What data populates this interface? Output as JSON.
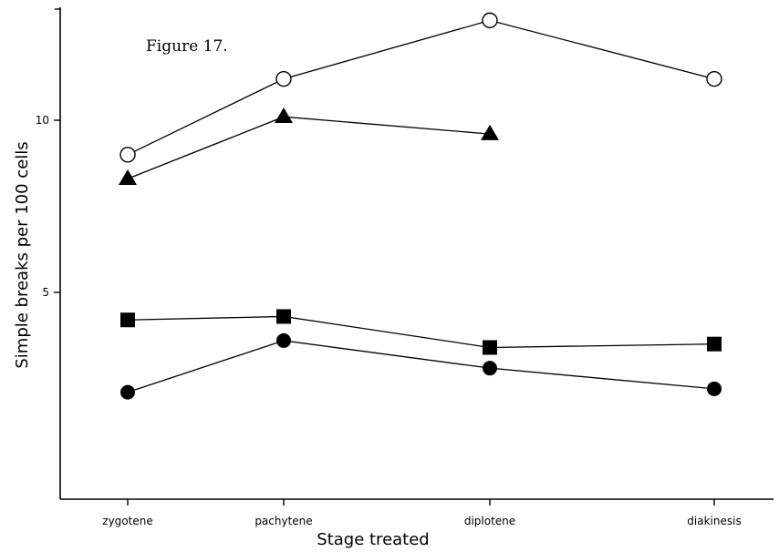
{
  "figure_label": "Figure 17.",
  "chart_data": {
    "type": "line",
    "title": "",
    "xlabel": "Stage treated",
    "ylabel": "Simple breaks per 100 cells",
    "categories": [
      "zygotene",
      "pachytene",
      "diplotene",
      "diakinesis"
    ],
    "ylim": [
      0,
      13
    ],
    "yticks": [
      5,
      10
    ],
    "grid": false,
    "series": [
      {
        "marker": "open-circle",
        "values": [
          9.0,
          11.2,
          12.9,
          11.2
        ]
      },
      {
        "marker": "filled-triangle",
        "values": [
          8.3,
          10.1,
          9.6,
          null
        ]
      },
      {
        "marker": "filled-square",
        "values": [
          4.2,
          4.3,
          3.4,
          3.5
        ]
      },
      {
        "marker": "filled-circle",
        "values": [
          2.1,
          3.6,
          2.8,
          2.2
        ]
      }
    ],
    "colors": {
      "ink": "#000000",
      "background": "#ffffff"
    }
  }
}
